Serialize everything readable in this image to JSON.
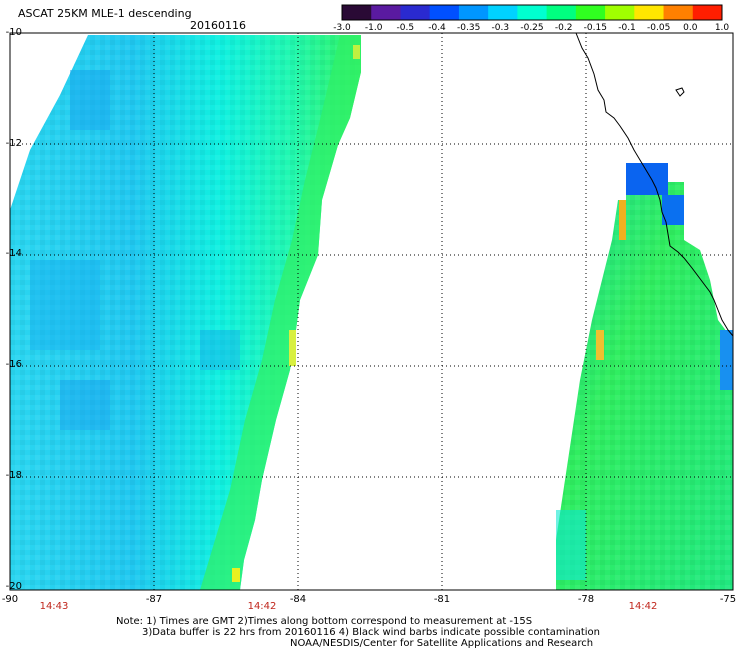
{
  "header": {
    "title": "ASCAT 25KM MLE-1 descending",
    "date": "20160116"
  },
  "colorbar": {
    "labels": [
      "-3.0",
      "-1.0",
      "-0.5",
      "-0.4",
      "-0.35",
      "-0.3",
      "-0.25",
      "-0.2",
      "-0.15",
      "-0.1",
      "-0.05",
      "0.0",
      "1.0"
    ],
    "colors": [
      "#2a0a35",
      "#5a1aa0",
      "#2a2ad0",
      "#0050ff",
      "#0096ff",
      "#00d2ff",
      "#00ffd0",
      "#00ff80",
      "#30ff20",
      "#a0ff00",
      "#ffe600",
      "#ff8000",
      "#ff1e00"
    ]
  },
  "axes": {
    "lat_labels": [
      "-10",
      "-12",
      "-14",
      "-16",
      "-18",
      "-20"
    ],
    "lon_labels": [
      "-90",
      "-87",
      "-84",
      "-81",
      "-78",
      "-75"
    ]
  },
  "times": {
    "swath1_left": "14:43",
    "swath1_right": "14:42",
    "swath2": "14:42"
  },
  "notes": {
    "line1": "Note: 1) Times are GMT 2)Times along bottom correspond to measurement at -15S",
    "line2": "3)Data buffer is 22 hrs from 20160116 4) Black wind barbs indicate possible contamination",
    "line3": "NOAA/NESDIS/Center for Satellite Applications and Research"
  }
}
